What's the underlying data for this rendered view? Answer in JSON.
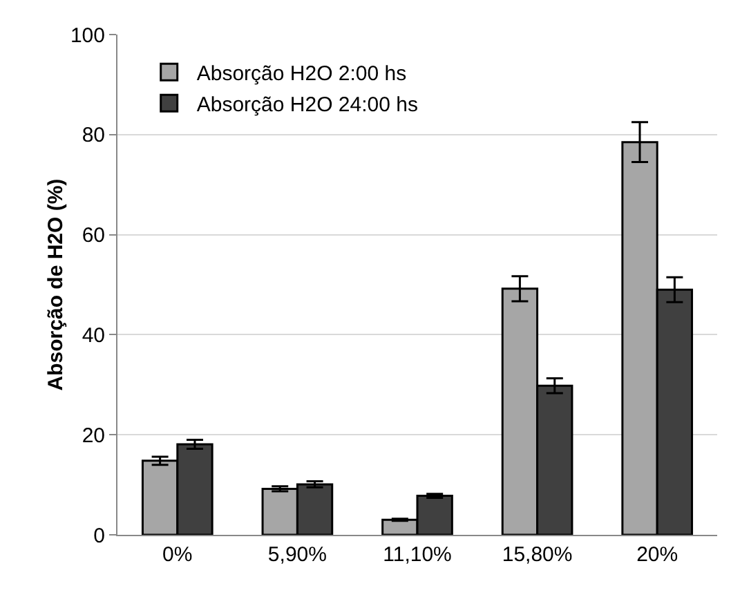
{
  "chart_data": {
    "type": "bar",
    "ylabel": "Absorção de H2O (%)",
    "categories": [
      "0%",
      "5,90%",
      "11,10%",
      "15,80%",
      "20%"
    ],
    "series": [
      {
        "name": "Absorção H2O 2:00 hs",
        "color": "#a6a6a6",
        "values": [
          14.8,
          9.2,
          3.0,
          49.2,
          78.5
        ],
        "errors": [
          0.8,
          0.5,
          0.2,
          2.5,
          4
        ]
      },
      {
        "name": "Absorção H2O 24:00 hs",
        "color": "#404040",
        "values": [
          18.1,
          10.1,
          7.8,
          29.8,
          49.0
        ],
        "errors": [
          0.9,
          0.6,
          0.4,
          1.5,
          2.5
        ]
      }
    ],
    "ylim": [
      0,
      100
    ],
    "yticks": [
      0,
      20,
      40,
      60,
      80,
      100
    ],
    "grid": "y",
    "legend": "top left"
  }
}
